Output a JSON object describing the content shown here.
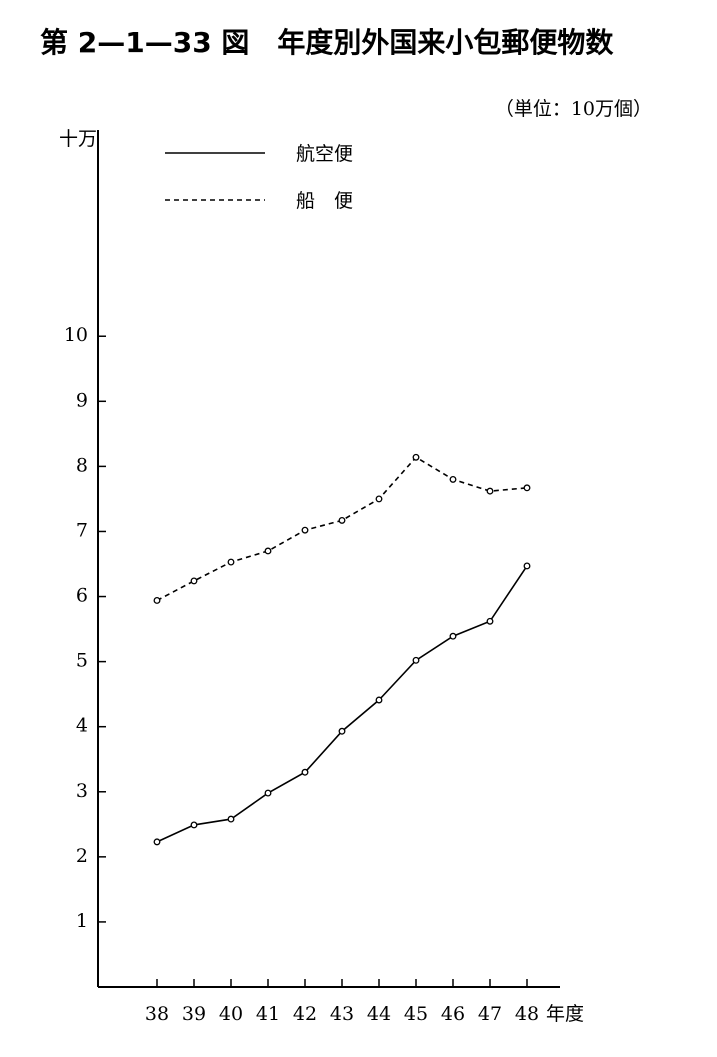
{
  "chart_data": {
    "type": "line",
    "title": "第 2—1—33 図　年度別外国来小包郵便物数",
    "unit_note": "（単位：10万個）",
    "y_label": "十万",
    "x_label": "年度",
    "categories": [
      "38",
      "39",
      "40",
      "41",
      "42",
      "43",
      "44",
      "45",
      "46",
      "47",
      "48"
    ],
    "series": [
      {
        "name": "航空便",
        "color": "#000000",
        "line_style": "solid",
        "values": [
          2.23,
          2.49,
          2.58,
          2.98,
          3.3,
          3.93,
          4.41,
          5.02,
          5.39,
          5.62,
          6.47
        ]
      },
      {
        "name": "船　便",
        "color": "#000000",
        "line_style": "dashed",
        "values": [
          5.94,
          6.24,
          6.53,
          6.7,
          7.02,
          7.17,
          7.5,
          8.14,
          7.8,
          7.62,
          7.67
        ]
      }
    ],
    "ylim": [
      0,
      13
    ],
    "yticks": [
      1,
      2,
      3,
      4,
      5,
      6,
      7,
      8,
      9,
      10
    ],
    "grid": false
  }
}
